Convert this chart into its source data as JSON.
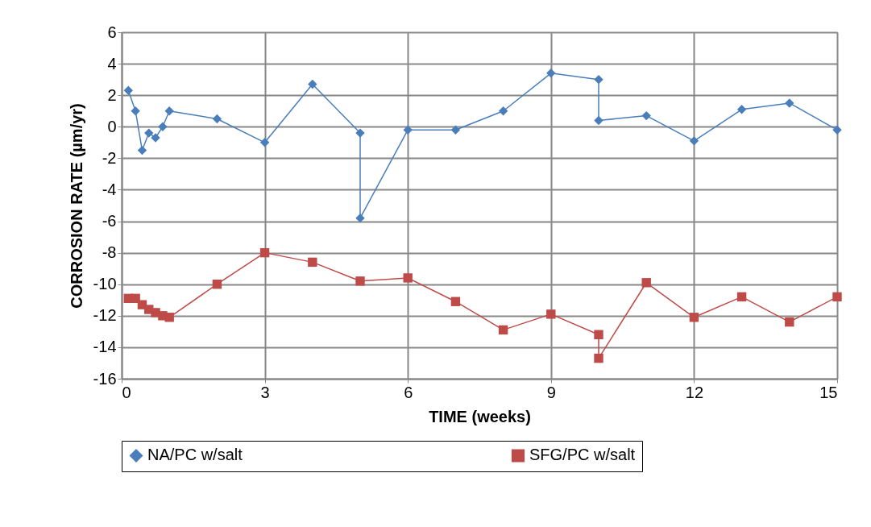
{
  "chart_data": {
    "type": "line",
    "xlabel": "TIME (weeks)",
    "ylabel": "CORROSION RATE (µm/yr)",
    "xlim": [
      0,
      15
    ],
    "xticks": [
      0,
      3,
      6,
      9,
      12,
      15
    ],
    "ylim": [
      -16,
      6
    ],
    "yticks": [
      -16,
      -14,
      -12,
      -10,
      -8,
      -6,
      -4,
      -2,
      0,
      2,
      4,
      6
    ],
    "grid": true,
    "legend": "bottom",
    "line_style": "solid",
    "series": [
      {
        "name": "NA/PC w/salt",
        "color": "#4a7ebb",
        "marker": "diamond",
        "x": [
          0.14,
          0.29,
          0.43,
          0.57,
          0.71,
          0.86,
          1,
          2,
          3,
          4,
          5,
          5,
          6,
          7,
          8,
          9,
          10,
          10,
          11,
          12,
          13,
          14,
          15
        ],
        "values": [
          2.3,
          1.0,
          -1.5,
          -0.4,
          -0.7,
          0,
          1.0,
          0.5,
          -1.0,
          2.7,
          -0.4,
          -5.8,
          -0.2,
          -0.2,
          1.0,
          3.4,
          3.0,
          0.4,
          0.7,
          -0.9,
          1.1,
          1.5,
          -0.2
        ]
      },
      {
        "name": "SFG/PC w/salt",
        "color": "#be4b48",
        "marker": "square",
        "x": [
          0.14,
          0.29,
          0.43,
          0.57,
          0.71,
          0.86,
          1,
          2,
          3,
          4,
          5,
          6,
          7,
          8,
          9,
          10,
          10,
          11,
          12,
          13,
          14,
          15
        ],
        "values": [
          -10.9,
          -10.9,
          -11.3,
          -11.6,
          -11.8,
          -12.0,
          -12.1,
          -10.0,
          -8.0,
          -8.6,
          -9.8,
          -9.6,
          -11.1,
          -12.9,
          -11.9,
          -13.2,
          -14.7,
          -9.9,
          -12.1,
          -10.8,
          -12.4,
          -10.8
        ]
      }
    ]
  }
}
